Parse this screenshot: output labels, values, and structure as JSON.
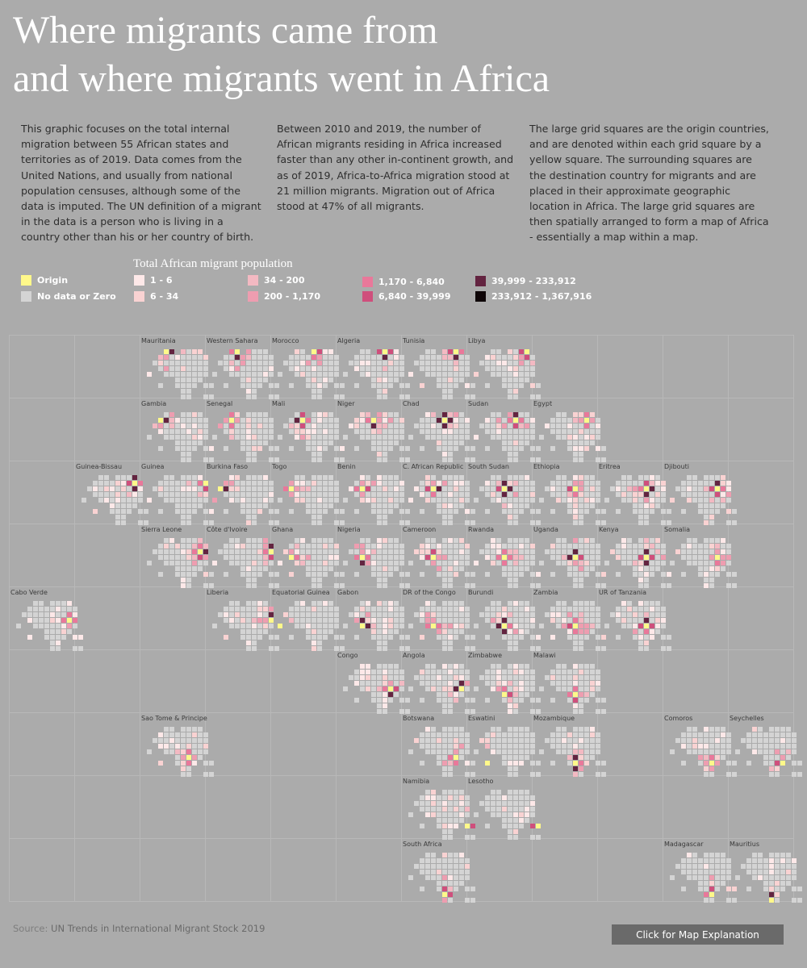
{
  "title": {
    "line1": "Where migrants came from",
    "line2": "and where migrants went in Africa"
  },
  "intro": {
    "col1": "This graphic focuses on the total internal migration between 55 African states and territories as of 2019. Data comes from the United Nations, and usually from national population censuses, although some of the data is imputed. The UN definition of a migrant in the data is a person who is living in a country other than his or her country of birth.",
    "col2": "Between 2010 and 2019, the number of African migrants residing in Africa increased faster than any other in-continent growth, and as of 2019, Africa-to-Africa migration stood at 21 million migrants. Migration out of Africa stood at 47% of all migrants.",
    "col3": "The large grid squares are the origin countries, and are denoted within each grid square by a yellow square. The surrounding squares are the destination country for migrants and are placed in their approximate geographic location in Africa. The large grid squares are then spatially arranged to form a map of Africa - essentially a map within a map."
  },
  "legend": {
    "title": "Total African migrant population",
    "origin": {
      "label": "Origin",
      "color": "#fff88a"
    },
    "nodata": {
      "label": "No data or Zero",
      "color": "#d4d4d4"
    },
    "bins": [
      {
        "label": "1 - 6",
        "color": "#fde8e8"
      },
      {
        "label": "6 - 34",
        "color": "#f9d2d2"
      },
      {
        "label": "34 - 200",
        "color": "#f3b9c2"
      },
      {
        "label": "200 - 1,170",
        "color": "#ee9db0"
      },
      {
        "label": "1,170 - 6,840",
        "color": "#e9789a"
      },
      {
        "label": "6,840 - 39,999",
        "color": "#cf4f7c"
      },
      {
        "label": "39,999 - 233,912",
        "color": "#632440"
      },
      {
        "label": "233,912 - 1,367,916",
        "color": "#0e0507"
      }
    ]
  },
  "chart_data": {
    "type": "heatmap",
    "title": "Where migrants came from and where migrants went in Africa",
    "legend_title": "Total African migrant population",
    "note": "Tile grid map of origin countries; within each tile, cells are destination countries colored by migrant population bin (0 = no data or zero, 1-8 = legend bins); the origin country is highlighted yellow.",
    "destination_order": [
      "Mauritania",
      "Western Sahara",
      "Morocco",
      "Algeria",
      "Tunisia",
      "Libya",
      "Gambia",
      "Senegal",
      "Mali",
      "Niger",
      "Chad",
      "Sudan",
      "Egypt",
      "Guinea-Bissau",
      "Guinea",
      "Burkina Faso",
      "Togo",
      "Benin",
      "C. African Republic",
      "South Sudan",
      "Ethiopia",
      "Eritrea",
      "Djibouti",
      "Sierra Leone",
      "Côte d'Ivoire",
      "Ghana",
      "Nigeria",
      "Cameroon",
      "Rwanda",
      "Uganda",
      "Kenya",
      "Somalia",
      "Cabo Verde",
      "Liberia",
      "Equatorial Guinea",
      "Gabon",
      "DR of the Congo",
      "Burundi",
      "Zambia",
      "UR of Tanzania",
      "Congo",
      "Angola",
      "Zimbabwe",
      "Malawi",
      "Sao Tome & Principe",
      "Botswana",
      "Eswatini",
      "Mozambique",
      "Comoros",
      "Seychelles",
      "Namibia",
      "Lesotho",
      "South Africa",
      "Madagascar",
      "Mauritius"
    ],
    "origins": [
      {
        "name": "Mauritania",
        "row": 0,
        "col": 2
      },
      {
        "name": "Western Sahara",
        "row": 0,
        "col": 3
      },
      {
        "name": "Morocco",
        "row": 0,
        "col": 4
      },
      {
        "name": "Algeria",
        "row": 0,
        "col": 5
      },
      {
        "name": "Tunisia",
        "row": 0,
        "col": 6
      },
      {
        "name": "Libya",
        "row": 0,
        "col": 7
      },
      {
        "name": "Gambia",
        "row": 1,
        "col": 2
      },
      {
        "name": "Senegal",
        "row": 1,
        "col": 3
      },
      {
        "name": "Mali",
        "row": 1,
        "col": 4
      },
      {
        "name": "Niger",
        "row": 1,
        "col": 5
      },
      {
        "name": "Chad",
        "row": 1,
        "col": 6
      },
      {
        "name": "Sudan",
        "row": 1,
        "col": 7
      },
      {
        "name": "Egypt",
        "row": 1,
        "col": 8
      },
      {
        "name": "Guinea-Bissau",
        "row": 2,
        "col": 1
      },
      {
        "name": "Guinea",
        "row": 2,
        "col": 2
      },
      {
        "name": "Burkina Faso",
        "row": 2,
        "col": 3
      },
      {
        "name": "Togo",
        "row": 2,
        "col": 4
      },
      {
        "name": "Benin",
        "row": 2,
        "col": 5
      },
      {
        "name": "C. African Republic",
        "row": 2,
        "col": 6
      },
      {
        "name": "South Sudan",
        "row": 2,
        "col": 7
      },
      {
        "name": "Ethiopia",
        "row": 2,
        "col": 8
      },
      {
        "name": "Eritrea",
        "row": 2,
        "col": 9
      },
      {
        "name": "Djibouti",
        "row": 2,
        "col": 10
      },
      {
        "name": "Sierra Leone",
        "row": 3,
        "col": 2
      },
      {
        "name": "Côte d'Ivoire",
        "row": 3,
        "col": 3
      },
      {
        "name": "Ghana",
        "row": 3,
        "col": 4
      },
      {
        "name": "Nigeria",
        "row": 3,
        "col": 5
      },
      {
        "name": "Cameroon",
        "row": 3,
        "col": 6
      },
      {
        "name": "Rwanda",
        "row": 3,
        "col": 7
      },
      {
        "name": "Uganda",
        "row": 3,
        "col": 8
      },
      {
        "name": "Kenya",
        "row": 3,
        "col": 9
      },
      {
        "name": "Somalia",
        "row": 3,
        "col": 10
      },
      {
        "name": "Cabo Verde",
        "row": 4,
        "col": 0
      },
      {
        "name": "Liberia",
        "row": 4,
        "col": 3
      },
      {
        "name": "Equatorial Guinea",
        "row": 4,
        "col": 4
      },
      {
        "name": "Gabon",
        "row": 4,
        "col": 5
      },
      {
        "name": "DR of the Congo",
        "row": 4,
        "col": 6
      },
      {
        "name": "Burundi",
        "row": 4,
        "col": 7
      },
      {
        "name": "Zambia",
        "row": 4,
        "col": 8
      },
      {
        "name": "UR of Tanzania",
        "row": 4,
        "col": 9
      },
      {
        "name": "Congo",
        "row": 5,
        "col": 5
      },
      {
        "name": "Angola",
        "row": 5,
        "col": 6
      },
      {
        "name": "Zimbabwe",
        "row": 5,
        "col": 7
      },
      {
        "name": "Malawi",
        "row": 5,
        "col": 8
      },
      {
        "name": "Sao Tome & Principe",
        "row": 6,
        "col": 2
      },
      {
        "name": "Botswana",
        "row": 6,
        "col": 6
      },
      {
        "name": "Eswatini",
        "row": 6,
        "col": 7
      },
      {
        "name": "Mozambique",
        "row": 6,
        "col": 8
      },
      {
        "name": "Comoros",
        "row": 6,
        "col": 10
      },
      {
        "name": "Seychelles",
        "row": 6,
        "col": 11
      },
      {
        "name": "Namibia",
        "row": 7,
        "col": 6
      },
      {
        "name": "Lesotho",
        "row": 7,
        "col": 7
      },
      {
        "name": "South Africa",
        "row": 8,
        "col": 6
      },
      {
        "name": "Madagascar",
        "row": 8,
        "col": 10
      },
      {
        "name": "Mauritius",
        "row": 8,
        "col": 11
      }
    ]
  },
  "source": {
    "prefix": "Source: ",
    "name": "UN Trends in International Migrant Stock 2019"
  },
  "button": {
    "label": "Click for Map Explanation"
  }
}
